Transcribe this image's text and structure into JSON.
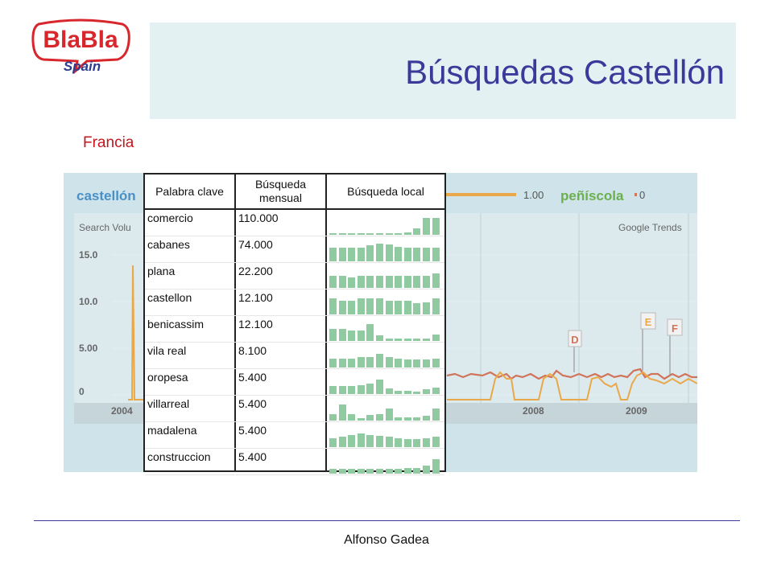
{
  "logo": {
    "line1": "BlaBla",
    "line2": "Spain"
  },
  "slide": {
    "title": "Búsquedas Castellón",
    "subtitle": "Francia"
  },
  "trends": {
    "term1": "castellón",
    "term2": "peñíscola",
    "term1_value": "1.00",
    "term2_value": "0",
    "y_label": "Search Volu",
    "source": "Google Trends",
    "y_ticks": [
      "15.0",
      "10.0",
      "5.00",
      "0"
    ],
    "x_ticks": [
      "2004",
      "2008",
      "2009"
    ],
    "markers": [
      "D",
      "E",
      "F"
    ],
    "colors": {
      "term1": "#e9a84a",
      "term2": "#d0745a",
      "term1_label": "#4a90c8",
      "term2_label": "#6ab04c"
    }
  },
  "table": {
    "headers": {
      "keyword": "Palabra clave",
      "monthly": "Búsqueda\nmensual",
      "local": "Búsqueda local"
    },
    "rows": [
      {
        "keyword": "comercio",
        "monthly": "110.000",
        "local_trend": [
          0.04,
          0.04,
          0.04,
          0.04,
          0.04,
          0.04,
          0.04,
          0.04,
          0.1,
          0.3,
          0.75,
          0.75
        ]
      },
      {
        "keyword": "cabanes",
        "monthly": "74.000",
        "local_trend": [
          0.6,
          0.6,
          0.6,
          0.6,
          0.7,
          0.8,
          0.75,
          0.65,
          0.6,
          0.6,
          0.6,
          0.6
        ]
      },
      {
        "keyword": "plana",
        "monthly": "22.200",
        "local_trend": [
          0.55,
          0.55,
          0.45,
          0.55,
          0.55,
          0.55,
          0.55,
          0.55,
          0.55,
          0.55,
          0.55,
          0.65
        ]
      },
      {
        "keyword": "castellon",
        "monthly": "12.100",
        "local_trend": [
          0.7,
          0.6,
          0.6,
          0.7,
          0.7,
          0.7,
          0.6,
          0.6,
          0.6,
          0.5,
          0.55,
          0.7
        ]
      },
      {
        "keyword": "benicassim",
        "monthly": "12.100",
        "local_trend": [
          0.55,
          0.55,
          0.45,
          0.45,
          0.75,
          0.25,
          0.1,
          0.1,
          0.1,
          0.1,
          0.1,
          0.3
        ]
      },
      {
        "keyword": "vila real",
        "monthly": "8.100",
        "local_trend": [
          0.4,
          0.4,
          0.4,
          0.45,
          0.45,
          0.6,
          0.45,
          0.4,
          0.35,
          0.35,
          0.35,
          0.4
        ]
      },
      {
        "keyword": "oropesa",
        "monthly": "5.400",
        "local_trend": [
          0.35,
          0.35,
          0.35,
          0.4,
          0.45,
          0.65,
          0.25,
          0.15,
          0.15,
          0.1,
          0.2,
          0.3
        ]
      },
      {
        "keyword": "villarreal",
        "monthly": "5.400",
        "local_trend": [
          0.3,
          0.7,
          0.3,
          0.1,
          0.25,
          0.3,
          0.55,
          0.15,
          0.15,
          0.15,
          0.2,
          0.55
        ]
      },
      {
        "keyword": "madalena",
        "monthly": "5.400",
        "local_trend": [
          0.4,
          0.45,
          0.55,
          0.6,
          0.55,
          0.5,
          0.45,
          0.4,
          0.35,
          0.35,
          0.4,
          0.45
        ]
      },
      {
        "keyword": "construccion",
        "monthly": "5.400",
        "local_trend": [
          0.2,
          0.2,
          0.2,
          0.2,
          0.2,
          0.2,
          0.2,
          0.2,
          0.25,
          0.25,
          0.35,
          0.65
        ]
      }
    ]
  },
  "footer": {
    "author": "Alfonso Gadea"
  }
}
